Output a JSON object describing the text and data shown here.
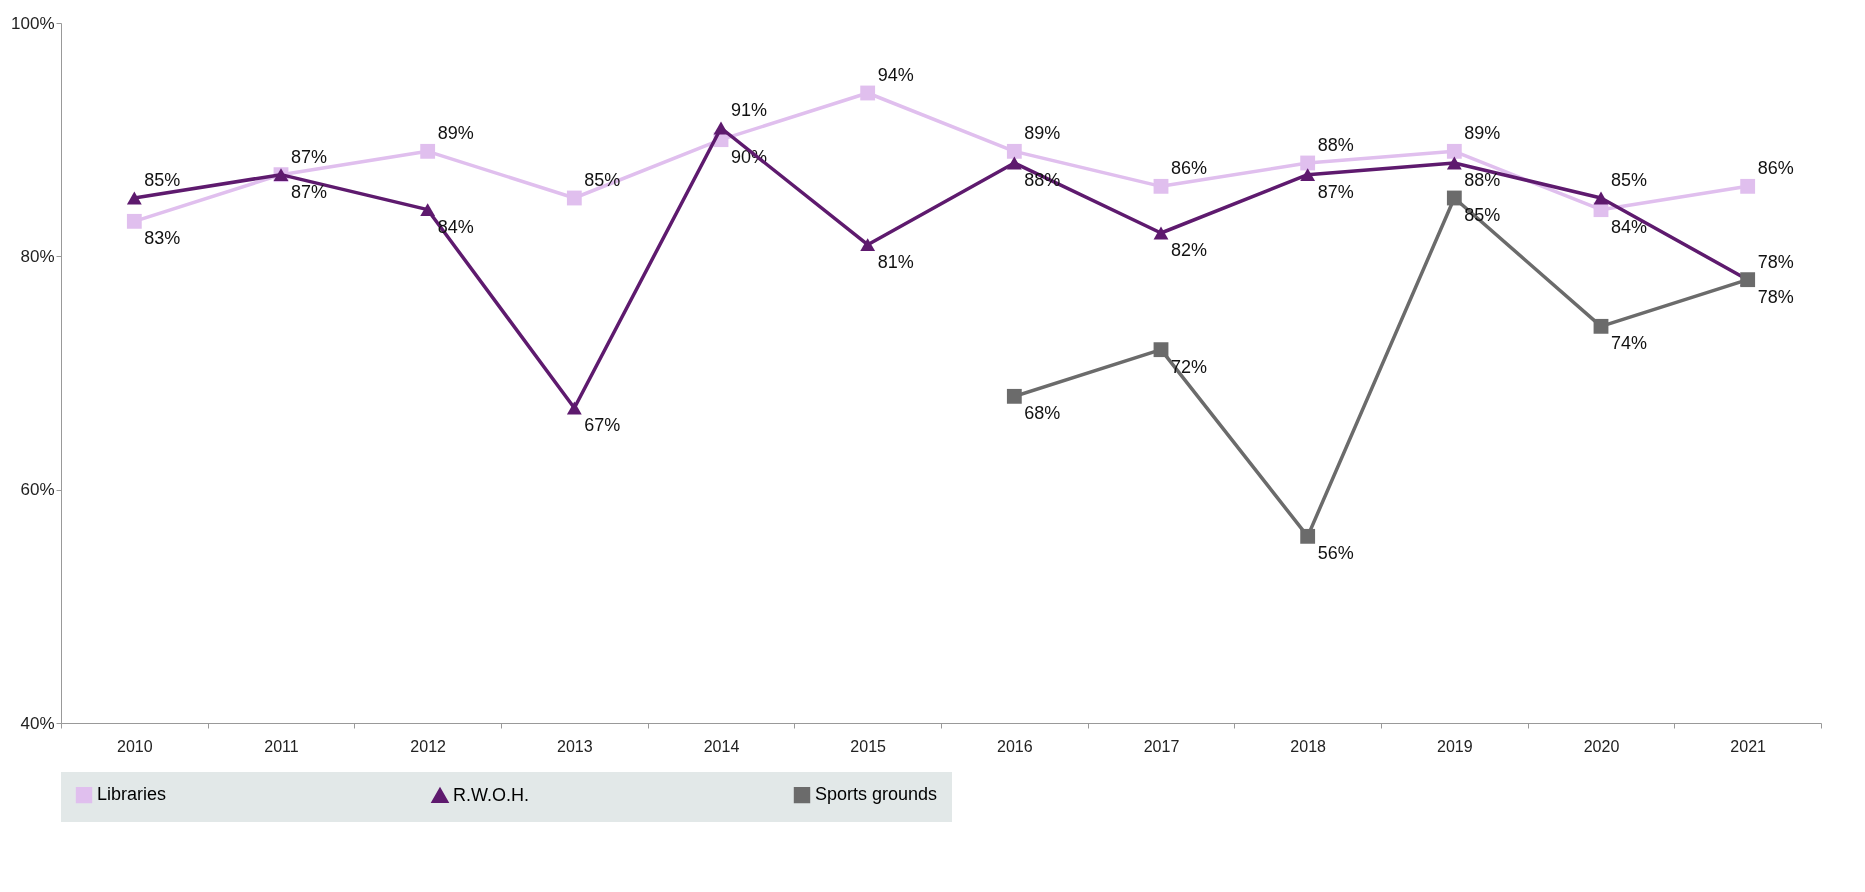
{
  "chart_data": {
    "type": "line",
    "categories": [
      "2010",
      "2011",
      "2012",
      "2013",
      "2014",
      "2015",
      "2016",
      "2017",
      "2018",
      "2019",
      "2020",
      "2021"
    ],
    "ylim": [
      40,
      100
    ],
    "yticks": [
      {
        "value": 40,
        "label": "40%"
      },
      {
        "value": 60,
        "label": "60%"
      },
      {
        "value": 80,
        "label": "80%"
      },
      {
        "value": 100,
        "label": "100%"
      }
    ],
    "legend": "bottom",
    "line_style": "solid",
    "series": [
      {
        "name": "Libraries",
        "color": "#e0bfee",
        "marker": "square",
        "values": [
          83,
          87,
          89,
          85,
          90,
          94,
          89,
          86,
          88,
          89,
          84,
          86
        ],
        "value_labels": [
          "83%",
          "87%",
          "89%",
          "85%",
          "90%",
          "94%",
          "89%",
          "86%",
          "88%",
          "89%",
          "84%",
          "86%"
        ]
      },
      {
        "name": "R.W.O.H.",
        "color": "#5e1a6e",
        "marker": "triangle",
        "values": [
          85,
          87,
          84,
          67,
          91,
          81,
          88,
          82,
          87,
          88,
          85,
          78
        ],
        "value_labels": [
          "85%",
          "87%",
          "84%",
          "67%",
          "91%",
          "81%",
          "88%",
          "82%",
          "87%",
          "88%",
          "85%",
          "78%"
        ]
      },
      {
        "name": "Sports grounds",
        "color": "#6b6b6b",
        "marker": "square",
        "values": [
          null,
          null,
          null,
          null,
          null,
          null,
          68,
          72,
          56,
          85,
          74,
          78
        ],
        "value_labels": [
          null,
          null,
          null,
          null,
          null,
          null,
          "68%",
          "72%",
          "56%",
          "85%",
          "74%",
          "78%"
        ]
      }
    ]
  }
}
